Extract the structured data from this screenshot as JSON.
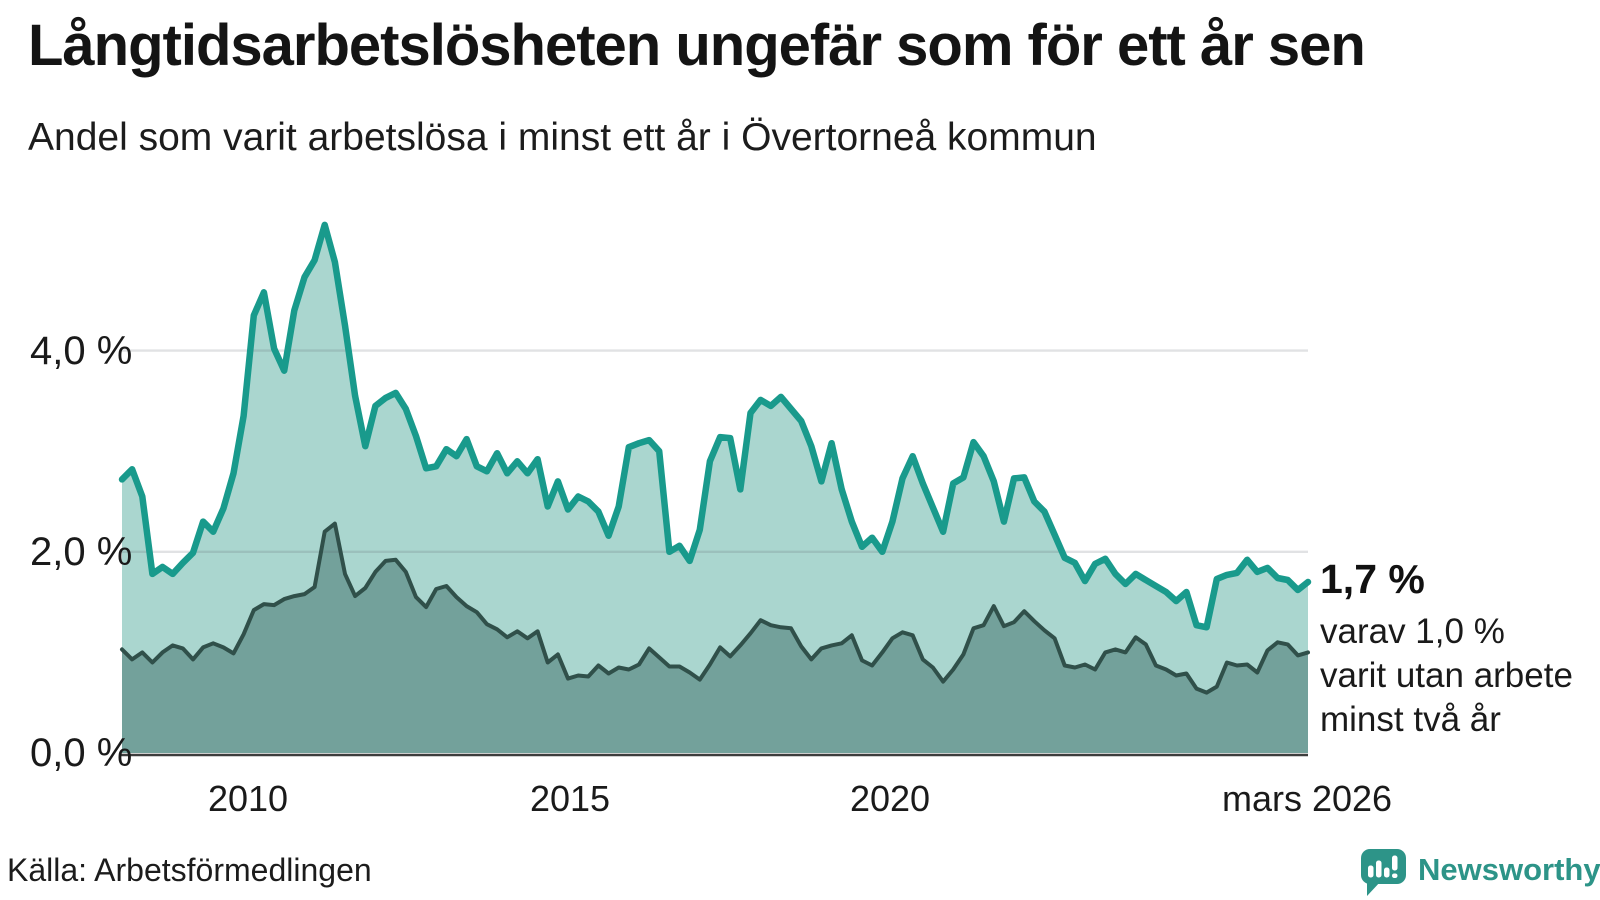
{
  "chart_data": {
    "type": "area",
    "title": "Långtidsarbetslösheten ungefär som för ett år sen",
    "subtitle": "Andel som varit arbetslösa i minst ett år i Övertorneå kommun",
    "unit": "%",
    "ylim": [
      0,
      5.6
    ],
    "grid_y": [
      2,
      4
    ],
    "grid_on": true,
    "legend_position": "none",
    "y_ticks": [
      {
        "value": 0,
        "label": "0,0 %"
      },
      {
        "value": 2,
        "label": "2,0 %"
      },
      {
        "value": 4,
        "label": "4,0 %"
      }
    ],
    "x_ticks": [
      "2010",
      "2015",
      "2020",
      "mars 2026"
    ],
    "x_range_description": "månadsvärden från 2008 till mars 2026",
    "series": [
      {
        "name": "Andel arbetslösa minst ett år",
        "line_color": "#199a8c",
        "fill_color": "#aad6cf",
        "end_value_label": "1,7 %",
        "values": [
          2.72,
          2.82,
          2.55,
          1.78,
          1.85,
          1.78,
          1.89,
          1.99,
          2.3,
          2.2,
          2.43,
          2.78,
          3.35,
          4.35,
          4.58,
          4.02,
          3.8,
          4.4,
          4.73,
          4.9,
          5.25,
          4.88,
          4.25,
          3.55,
          3.05,
          3.45,
          3.53,
          3.58,
          3.42,
          3.15,
          2.83,
          2.85,
          3.02,
          2.95,
          3.12,
          2.85,
          2.8,
          2.98,
          2.78,
          2.9,
          2.78,
          2.92,
          2.45,
          2.7,
          2.42,
          2.55,
          2.5,
          2.4,
          2.16,
          2.45,
          3.04,
          3.08,
          3.11,
          3.0,
          2.0,
          2.06,
          1.91,
          2.22,
          2.9,
          3.14,
          3.13,
          2.62,
          3.38,
          3.51,
          3.45,
          3.54,
          3.42,
          3.3,
          3.05,
          2.7,
          3.08,
          2.62,
          2.3,
          2.05,
          2.14,
          2.0,
          2.3,
          2.73,
          2.95,
          2.68,
          2.44,
          2.2,
          2.68,
          2.74,
          3.09,
          2.95,
          2.7,
          2.3,
          2.73,
          2.74,
          2.5,
          2.4,
          2.17,
          1.94,
          1.89,
          1.71,
          1.88,
          1.93,
          1.78,
          1.68,
          1.78,
          1.72,
          1.66,
          1.6,
          1.51,
          1.6,
          1.27,
          1.25,
          1.73,
          1.77,
          1.79,
          1.92,
          1.8,
          1.84,
          1.74,
          1.72,
          1.62,
          1.7
        ]
      },
      {
        "name": "varav varit utan arbete minst två år",
        "line_color": "#30504a",
        "fill_color": "#73a19b",
        "end_value_label": "1,0 %",
        "values": [
          1.03,
          0.93,
          1.0,
          0.9,
          1.0,
          1.07,
          1.04,
          0.93,
          1.05,
          1.09,
          1.05,
          0.99,
          1.18,
          1.42,
          1.48,
          1.47,
          1.53,
          1.56,
          1.58,
          1.65,
          2.2,
          2.28,
          1.78,
          1.56,
          1.64,
          1.8,
          1.91,
          1.92,
          1.8,
          1.55,
          1.45,
          1.63,
          1.66,
          1.55,
          1.46,
          1.4,
          1.28,
          1.23,
          1.15,
          1.21,
          1.14,
          1.21,
          0.9,
          0.98,
          0.74,
          0.77,
          0.76,
          0.87,
          0.79,
          0.85,
          0.83,
          0.88,
          1.04,
          0.95,
          0.86,
          0.86,
          0.8,
          0.73,
          0.88,
          1.05,
          0.96,
          1.07,
          1.19,
          1.32,
          1.27,
          1.25,
          1.24,
          1.06,
          0.93,
          1.04,
          1.07,
          1.09,
          1.17,
          0.92,
          0.87,
          1.0,
          1.14,
          1.2,
          1.17,
          0.93,
          0.85,
          0.71,
          0.83,
          0.98,
          1.24,
          1.27,
          1.46,
          1.26,
          1.3,
          1.41,
          1.31,
          1.22,
          1.14,
          0.87,
          0.85,
          0.88,
          0.83,
          1.0,
          1.03,
          1.0,
          1.15,
          1.08,
          0.87,
          0.83,
          0.77,
          0.79,
          0.64,
          0.6,
          0.66,
          0.9,
          0.87,
          0.88,
          0.8,
          1.02,
          1.1,
          1.08,
          0.97,
          1.0
        ]
      }
    ]
  },
  "annotation": {
    "value": "1,7 %",
    "lines": [
      "varav 1,0 %",
      "varit utan arbete",
      "minst två år"
    ]
  },
  "source": "Källa: Arbetsförmedlingen",
  "logo": {
    "text": "Newsworthy",
    "color": "#2d9488"
  },
  "colors": {
    "accent_teal": "#199a8c",
    "light_fill": "#aad6cf",
    "dark_fill": "#73a19b",
    "dark_line": "#30504a",
    "axis": "#3d3d3d",
    "grid": "#e2e2e6"
  }
}
